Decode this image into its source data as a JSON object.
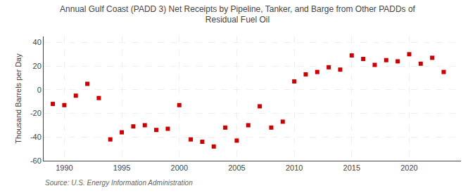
{
  "chart_data": {
    "type": "scatter",
    "title": "Annual Gulf Coast (PADD 3) Net Receipts by Pipeline, Tanker, and Barge from Other PADDs of\nResidual Fuel Oil",
    "ylabel": "Thousand Barrels per Day",
    "annotations": [
      "Source: U.S. Energy Information Administration"
    ],
    "x": [
      1989,
      1990,
      1991,
      1992,
      1993,
      1994,
      1995,
      1996,
      1997,
      1998,
      1999,
      2000,
      2001,
      2002,
      2003,
      2004,
      2005,
      2006,
      2007,
      2008,
      2009,
      2010,
      2011,
      2012,
      2013,
      2014,
      2015,
      2016,
      2017,
      2018,
      2019,
      2020,
      2021,
      2022,
      2023
    ],
    "values": [
      -12,
      -13,
      -5,
      5,
      -7,
      -42,
      -36,
      -31,
      -30,
      -34,
      -33,
      -13,
      -42,
      -44,
      -48,
      -32,
      -43,
      -30,
      -14,
      -32,
      -27,
      7,
      13,
      15,
      19,
      17,
      29,
      26,
      21,
      25,
      24,
      30,
      22,
      27,
      15
    ],
    "color": "#cc0000",
    "marker": "square",
    "ylim": [
      -60,
      45
    ],
    "yticks": [
      -60,
      -40,
      -20,
      0,
      20,
      40
    ],
    "xlim": [
      1988.2,
      2024.5
    ],
    "xticks": [
      1990,
      1995,
      2000,
      2005,
      2010,
      2015,
      2020
    ],
    "grid": true
  }
}
